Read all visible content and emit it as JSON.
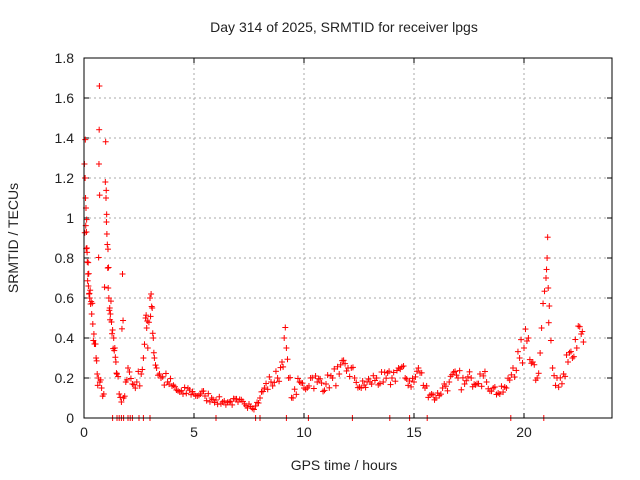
{
  "chart_data": {
    "type": "scatter",
    "title": "Day 314 of 2025, SRMTID for receiver lpgs",
    "xlabel": "GPS time / hours",
    "ylabel": "SRMTID / TECUs",
    "xlim": [
      0,
      24
    ],
    "ylim": [
      0,
      1.8
    ],
    "x_ticks": [
      0,
      5,
      10,
      15,
      20
    ],
    "x_tick_labels": [
      "0",
      "5",
      "10",
      "15",
      "20"
    ],
    "y_ticks": [
      0,
      0.2,
      0.4,
      0.6,
      0.8,
      1,
      1.2,
      1.4,
      1.6,
      1.8
    ],
    "y_tick_labels": [
      "0",
      "0.2",
      "0.4",
      "0.6",
      "0.8",
      "1",
      "1.2",
      "1.4",
      "1.6",
      "1.8"
    ],
    "grid": true,
    "marker": "+",
    "series": [
      {
        "name": "SRMTID",
        "color": "#ff0000",
        "points": [
          [
            0.02,
            1.27
          ],
          [
            0.05,
            1.2
          ],
          [
            0.07,
            1.1
          ],
          [
            0.09,
            1.05
          ],
          [
            0.11,
            0.93
          ],
          [
            0.13,
            0.85
          ],
          [
            0.15,
            0.78
          ],
          [
            0.18,
            0.72
          ],
          [
            0.2,
            0.66
          ],
          [
            0.23,
            0.62
          ],
          [
            0.26,
            0.6
          ],
          [
            0.3,
            0.57
          ],
          [
            0.35,
            0.52
          ],
          [
            0.4,
            0.47
          ],
          [
            0.45,
            0.42
          ],
          [
            0.5,
            0.37
          ],
          [
            0.55,
            0.3
          ],
          [
            0.6,
            0.22
          ],
          [
            0.65,
            0.2
          ],
          [
            0.68,
            1.27
          ],
          [
            0.7,
            1.66
          ],
          [
            0.72,
            0.18
          ],
          [
            0.8,
            0.15
          ],
          [
            0.9,
            0.12
          ],
          [
            0.97,
            1.18
          ],
          [
            1.0,
            1.1
          ],
          [
            1.02,
            0.98
          ],
          [
            1.04,
            0.92
          ],
          [
            1.08,
            0.75
          ],
          [
            1.1,
            0.65
          ],
          [
            1.13,
            0.6
          ],
          [
            1.17,
            0.55
          ],
          [
            1.2,
            0.52
          ],
          [
            1.25,
            0.48
          ],
          [
            1.3,
            0.44
          ],
          [
            1.35,
            0.4
          ],
          [
            1.4,
            0.35
          ],
          [
            1.45,
            0.28
          ],
          [
            1.5,
            0.22
          ],
          [
            1.6,
            0.12
          ],
          [
            1.7,
            0.08
          ],
          [
            1.75,
            0.72
          ],
          [
            1.8,
            0.1
          ],
          [
            1.9,
            0.18
          ],
          [
            2.0,
            0.25
          ],
          [
            2.2,
            0.17
          ],
          [
            2.4,
            0.18
          ],
          [
            2.6,
            0.22
          ],
          [
            2.7,
            0.3
          ],
          [
            2.8,
            0.5
          ],
          [
            2.85,
            0.45
          ],
          [
            2.9,
            0.35
          ],
          [
            3.0,
            0.6
          ],
          [
            3.05,
            0.62
          ],
          [
            3.1,
            0.55
          ],
          [
            3.15,
            0.4
          ],
          [
            3.2,
            0.3
          ],
          [
            3.3,
            0.25
          ],
          [
            3.5,
            0.2
          ],
          [
            3.8,
            0.18
          ],
          [
            4.0,
            0.16
          ],
          [
            4.2,
            0.14
          ],
          [
            4.5,
            0.12
          ],
          [
            4.8,
            0.14
          ],
          [
            5.0,
            0.12
          ],
          [
            5.3,
            0.12
          ],
          [
            5.5,
            0.11
          ],
          [
            5.8,
            0.1
          ],
          [
            6.0,
            0.09
          ],
          [
            6.3,
            0.08
          ],
          [
            6.6,
            0.08
          ],
          [
            7.0,
            0.08
          ],
          [
            7.3,
            0.07
          ],
          [
            7.5,
            0.07
          ],
          [
            7.8,
            0.06
          ],
          [
            8.0,
            0.1
          ],
          [
            8.2,
            0.15
          ],
          [
            8.5,
            0.18
          ],
          [
            8.8,
            0.2
          ],
          [
            9.0,
            0.28
          ],
          [
            9.1,
            0.4
          ],
          [
            9.2,
            0.35
          ],
          [
            9.3,
            0.2
          ],
          [
            9.5,
            0.1
          ],
          [
            9.8,
            0.18
          ],
          [
            10.0,
            0.15
          ],
          [
            10.3,
            0.2
          ],
          [
            10.6,
            0.18
          ],
          [
            11.0,
            0.17
          ],
          [
            11.3,
            0.2
          ],
          [
            11.6,
            0.22
          ],
          [
            12.0,
            0.25
          ],
          [
            12.3,
            0.2
          ],
          [
            12.6,
            0.15
          ],
          [
            13.0,
            0.18
          ],
          [
            13.3,
            0.2
          ],
          [
            13.6,
            0.18
          ],
          [
            14.0,
            0.2
          ],
          [
            14.3,
            0.25
          ],
          [
            14.6,
            0.2
          ],
          [
            15.0,
            0.18
          ],
          [
            15.2,
            0.25
          ],
          [
            15.5,
            0.15
          ],
          [
            15.8,
            0.12
          ],
          [
            16.0,
            0.1
          ],
          [
            16.3,
            0.15
          ],
          [
            16.6,
            0.18
          ],
          [
            17.0,
            0.2
          ],
          [
            17.3,
            0.17
          ],
          [
            17.6,
            0.2
          ],
          [
            18.0,
            0.22
          ],
          [
            18.3,
            0.18
          ],
          [
            18.6,
            0.15
          ],
          [
            18.9,
            0.12
          ],
          [
            19.2,
            0.15
          ],
          [
            19.5,
            0.25
          ],
          [
            19.8,
            0.3
          ],
          [
            20.0,
            0.35
          ],
          [
            20.2,
            0.4
          ],
          [
            20.4,
            0.28
          ],
          [
            20.6,
            0.2
          ],
          [
            20.8,
            0.45
          ],
          [
            21.0,
            0.7
          ],
          [
            21.05,
            0.8
          ],
          [
            21.1,
            0.65
          ],
          [
            21.15,
            0.56
          ],
          [
            21.3,
            0.25
          ],
          [
            21.5,
            0.2
          ],
          [
            21.8,
            0.22
          ],
          [
            22.0,
            0.28
          ],
          [
            22.2,
            0.3
          ],
          [
            22.4,
            0.35
          ],
          [
            22.6,
            0.42
          ],
          [
            22.7,
            0.38
          ]
        ]
      }
    ],
    "zero_points_x": [
      1.3,
      1.5,
      1.6,
      1.7,
      1.8,
      2.0,
      2.1,
      2.2,
      2.5,
      2.7,
      3.0,
      6.0,
      7.8,
      8.0,
      9.2,
      10.2,
      12.2,
      13.9,
      14.8,
      15.6,
      19.4,
      20.9
    ]
  }
}
